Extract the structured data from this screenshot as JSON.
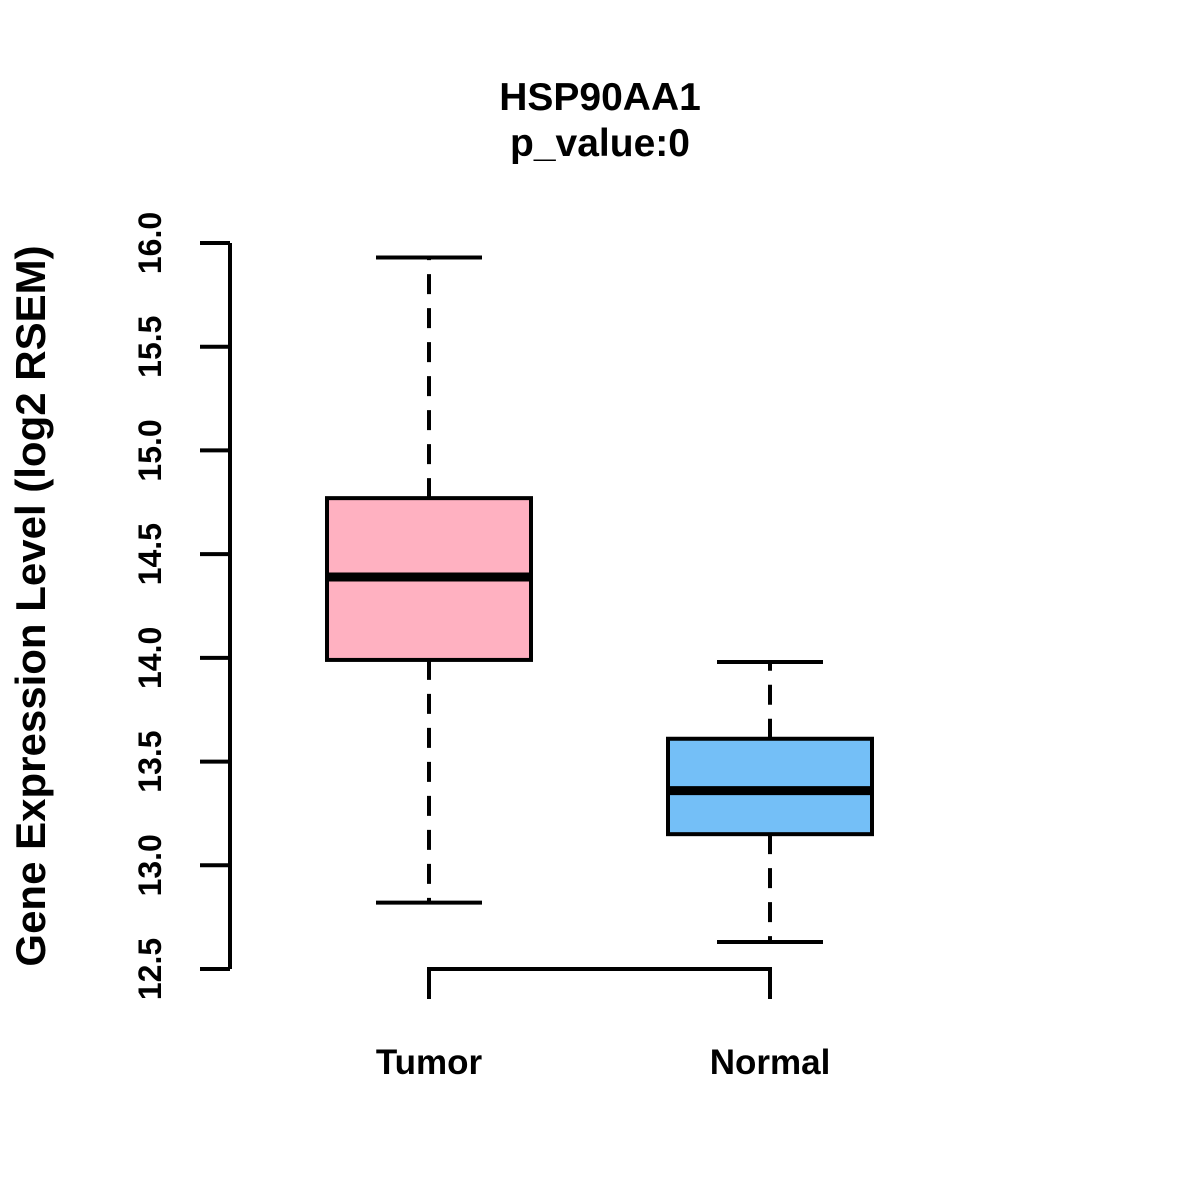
{
  "figure": {
    "title": "HSP90AA1",
    "subtitle": "p_value:0",
    "y_axis_title": "Gene Expression Level (log2 RSEM)"
  },
  "colors": {
    "tumor_box_fill": "#FFB1C1",
    "normal_box_fill": "#74BFF7",
    "line": "#000000",
    "background": "#FFFFFF"
  },
  "chart_data": {
    "type": "boxplot",
    "title": "HSP90AA1",
    "subtitle": "p_value:0",
    "xlabel": "",
    "ylabel": "Gene Expression Level (log2 RSEM)",
    "categories": [
      "Tumor",
      "Normal"
    ],
    "series": [
      {
        "name": "Tumor",
        "whisker_low": 12.82,
        "q1": 13.99,
        "median": 14.39,
        "q3": 14.77,
        "whisker_high": 15.93,
        "fill": "#FFB1C1"
      },
      {
        "name": "Normal",
        "whisker_low": 12.63,
        "q1": 13.15,
        "median": 13.36,
        "q3": 13.61,
        "whisker_high": 13.98,
        "fill": "#74BFF7"
      }
    ],
    "ylim": [
      12.5,
      16.0
    ],
    "yticks": [
      "12.5",
      "13.0",
      "13.5",
      "14.0",
      "14.5",
      "15.0",
      "15.5",
      "16.0"
    ],
    "grid": false,
    "legend": "none",
    "whisker_style": "dashed",
    "outliers": []
  }
}
